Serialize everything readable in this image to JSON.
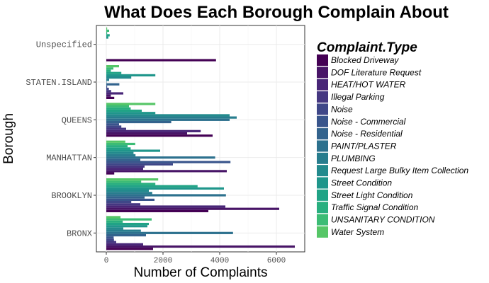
{
  "chart_data": {
    "type": "bar",
    "orientation": "horizontal",
    "title": "What Does Each Borough Complain About",
    "xlabel": "Number of Complaints",
    "ylabel": "Borough",
    "xlim": [
      -350,
      7000
    ],
    "x_ticks": [
      0,
      2000,
      4000,
      6000
    ],
    "x_tick_labels": [
      "0",
      "2000",
      "4000",
      "6000"
    ],
    "grid": true,
    "legend_title": "Complaint.Type",
    "legend_position": "right",
    "categories": [
      "BRONX",
      "BROOKLYN",
      "MANHATTAN",
      "QUEENS",
      "STATEN.ISLAND",
      "Unspecified"
    ],
    "series": [
      {
        "name": "Blocked Driveway",
        "color": "#440154",
        "values": [
          1650,
          3600,
          280,
          3750,
          280,
          3870
        ]
      },
      {
        "name": "DOF Literature Request",
        "color": "#481567",
        "values": [
          6650,
          6100,
          4250,
          2850,
          160,
          0
        ]
      },
      {
        "name": "HEAT/HOT WATER",
        "color": "#482677",
        "values": [
          1300,
          4200,
          1300,
          3330,
          600,
          0
        ]
      },
      {
        "name": "Illegal Parking",
        "color": "#453781",
        "values": [
          350,
          1200,
          1350,
          700,
          170,
          0
        ]
      },
      {
        "name": "Noise",
        "color": "#3F4788",
        "values": [
          270,
          880,
          2350,
          530,
          90,
          0
        ]
      },
      {
        "name": "Noise - Commercial",
        "color": "#39558C",
        "values": [
          260,
          1700,
          4380,
          450,
          30,
          0
        ]
      },
      {
        "name": "Noise - Residential",
        "color": "#33638D",
        "values": [
          1400,
          1350,
          1200,
          2290,
          460,
          0
        ]
      },
      {
        "name": "PAINT/PLASTER",
        "color": "#2D718E",
        "values": [
          4470,
          4220,
          3840,
          4350,
          10,
          0
        ]
      },
      {
        "name": "PLUMBING",
        "color": "#287D8E",
        "values": [
          1220,
          1620,
          1030,
          4600,
          100,
          0
        ]
      },
      {
        "name": "Request Large Bulky Item Collection",
        "color": "#238A8D",
        "values": [
          600,
          1500,
          960,
          4350,
          880,
          0
        ]
      },
      {
        "name": "Street Condition",
        "color": "#1F968B",
        "values": [
          1450,
          4150,
          1900,
          1730,
          1730,
          70
        ]
      },
      {
        "name": "Street Light Condition",
        "color": "#20A386",
        "values": [
          1500,
          3220,
          860,
          1250,
          530,
          120
        ]
      },
      {
        "name": "Traffic Signal Condition",
        "color": "#29AF7F",
        "values": [
          580,
          1730,
          750,
          860,
          160,
          30
        ]
      },
      {
        "name": "UNSANITARY CONDITION",
        "color": "#3CBC75",
        "values": [
          1600,
          1230,
          1020,
          800,
          250,
          100
        ]
      },
      {
        "name": "Water System",
        "color": "#56C667",
        "values": [
          500,
          1830,
          670,
          1730,
          450,
          30
        ]
      }
    ]
  }
}
